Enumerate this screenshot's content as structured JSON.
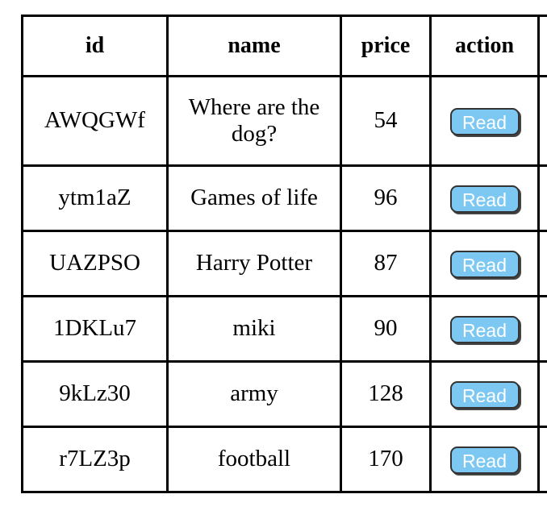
{
  "table": {
    "headers": [
      "id",
      "name",
      "price",
      "action"
    ],
    "rows": [
      {
        "id": "AWQGWf",
        "name": "Where are the dog?",
        "price": "54",
        "action": "Read"
      },
      {
        "id": "ytm1aZ",
        "name": "Games of life",
        "price": "96",
        "action": "Read"
      },
      {
        "id": "UAZPSO",
        "name": "Harry Potter",
        "price": "87",
        "action": "Read"
      },
      {
        "id": "1DKLu7",
        "name": "miki",
        "price": "90",
        "action": "Read"
      },
      {
        "id": "9kLz30",
        "name": "army",
        "price": "128",
        "action": "Read"
      },
      {
        "id": "r7LZ3p",
        "name": "football",
        "price": "170",
        "action": "Read"
      }
    ]
  },
  "colors": {
    "button_fill": "#7cc8f2",
    "button_text": "#ffffff",
    "border": "#000000"
  }
}
